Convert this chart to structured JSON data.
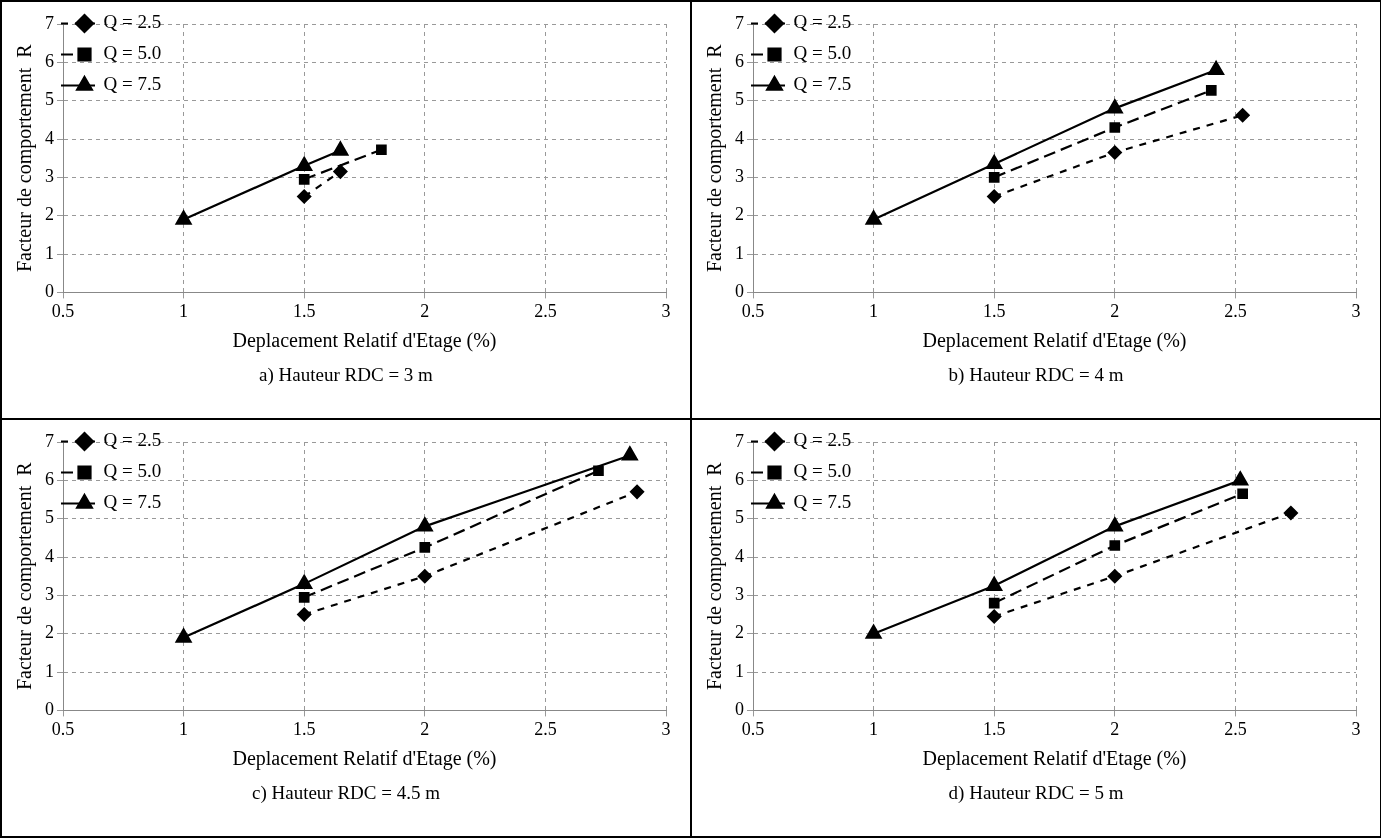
{
  "chart_data": [
    {
      "type": "line",
      "xlabel": "Deplacement Relatif d'Etage (%)",
      "ylabel": "Facteur de comportement  R",
      "annotations": [
        "a) Hauteur RDC = 3 m"
      ],
      "xlim": [
        0.5,
        3
      ],
      "xticks": [
        0.5,
        1,
        1.5,
        2,
        2.5,
        3
      ],
      "ylim": [
        0,
        7
      ],
      "yticks": [
        0,
        1,
        2,
        3,
        4,
        5,
        6,
        7
      ],
      "grid": true,
      "legend": "top left",
      "series": [
        {
          "name": "Q = 2.5",
          "color": "#000000",
          "marker": "diamond",
          "line_style": "dotted",
          "x": [
            1.5,
            1.65
          ],
          "values": [
            2.5,
            3.15
          ]
        },
        {
          "name": "Q = 5.0",
          "color": "#000000",
          "marker": "square",
          "line_style": "dashed",
          "x": [
            1.5,
            1.82
          ],
          "values": [
            2.95,
            3.72
          ]
        },
        {
          "name": "Q = 7.5",
          "color": "#000000",
          "marker": "triangle",
          "line_style": "solid",
          "x": [
            1,
            1.5,
            1.65
          ],
          "values": [
            1.9,
            3.3,
            3.7
          ]
        }
      ]
    },
    {
      "type": "line",
      "xlabel": "Deplacement Relatif d'Etage (%)",
      "ylabel": "Facteur de comportement  R",
      "annotations": [
        "b)  Hauteur RDC = 4 m"
      ],
      "xlim": [
        0.5,
        3
      ],
      "xticks": [
        0.5,
        1,
        1.5,
        2,
        2.5,
        3
      ],
      "ylim": [
        0,
        7
      ],
      "yticks": [
        0,
        1,
        2,
        3,
        4,
        5,
        6,
        7
      ],
      "grid": true,
      "legend": "top left",
      "series": [
        {
          "name": "Q = 2.5",
          "color": "#000000",
          "marker": "diamond",
          "line_style": "dotted",
          "x": [
            1.5,
            2,
            2.53
          ],
          "values": [
            2.5,
            3.65,
            4.62
          ]
        },
        {
          "name": "Q = 5.0",
          "color": "#000000",
          "marker": "square",
          "line_style": "dashed",
          "x": [
            1.5,
            2,
            2.4
          ],
          "values": [
            3.0,
            4.3,
            5.27
          ]
        },
        {
          "name": "Q = 7.5",
          "color": "#000000",
          "marker": "triangle",
          "line_style": "solid",
          "x": [
            1,
            1.5,
            2,
            2.42
          ],
          "values": [
            1.9,
            3.35,
            4.8,
            5.8
          ]
        }
      ]
    },
    {
      "type": "line",
      "xlabel": "Deplacement Relatif d'Etage (%)",
      "ylabel": "Facteur de comportement  R",
      "annotations": [
        "c)  Hauteur RDC = 4.5 m"
      ],
      "xlim": [
        0.5,
        3
      ],
      "xticks": [
        0.5,
        1,
        1.5,
        2,
        2.5,
        3
      ],
      "ylim": [
        0,
        7
      ],
      "yticks": [
        0,
        1,
        2,
        3,
        4,
        5,
        6,
        7
      ],
      "grid": true,
      "legend": "top left",
      "series": [
        {
          "name": "Q = 2.5",
          "color": "#000000",
          "marker": "diamond",
          "line_style": "dotted",
          "x": [
            1.5,
            2,
            2.88
          ],
          "values": [
            2.5,
            3.5,
            5.7
          ]
        },
        {
          "name": "Q = 5.0",
          "color": "#000000",
          "marker": "square",
          "line_style": "dashed",
          "x": [
            1.5,
            2,
            2.72
          ],
          "values": [
            2.95,
            4.25,
            6.25
          ]
        },
        {
          "name": "Q = 7.5",
          "color": "#000000",
          "marker": "triangle",
          "line_style": "solid",
          "x": [
            1,
            1.5,
            2,
            2.85
          ],
          "values": [
            1.9,
            3.3,
            4.8,
            6.65
          ]
        }
      ]
    },
    {
      "type": "line",
      "xlabel": "Deplacement Relatif d'Etage (%)",
      "ylabel": "Facteur de comportement  R",
      "annotations": [
        "d)  Hauteur RDC = 5 m"
      ],
      "xlim": [
        0.5,
        3
      ],
      "xticks": [
        0.5,
        1,
        1.5,
        2,
        2.5,
        3
      ],
      "ylim": [
        0,
        7
      ],
      "yticks": [
        0,
        1,
        2,
        3,
        4,
        5,
        6,
        7
      ],
      "grid": true,
      "legend": "top left",
      "series": [
        {
          "name": "Q = 2.5",
          "color": "#000000",
          "marker": "diamond",
          "line_style": "dotted",
          "x": [
            1.5,
            2,
            2.73
          ],
          "values": [
            2.45,
            3.5,
            5.15
          ]
        },
        {
          "name": "Q = 5.0",
          "color": "#000000",
          "marker": "square",
          "line_style": "dashed",
          "x": [
            1.5,
            2,
            2.53
          ],
          "values": [
            2.8,
            4.3,
            5.65
          ]
        },
        {
          "name": "Q = 7.5",
          "color": "#000000",
          "marker": "triangle",
          "line_style": "solid",
          "x": [
            1,
            1.5,
            2,
            2.52
          ],
          "values": [
            2.0,
            3.25,
            4.8,
            6.0
          ]
        }
      ]
    }
  ]
}
